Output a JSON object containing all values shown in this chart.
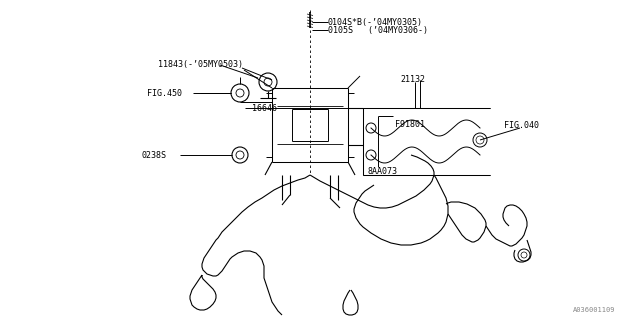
{
  "background_color": "#ffffff",
  "line_color": "#000000",
  "labels": {
    "part1": "0104S*B(-’04MY0305)",
    "part2": "0105S   (’04MY0306-)",
    "part3": "11843(-’05MY0503)",
    "part4": "FIG.450",
    "part5": "16646",
    "part6": "21132",
    "part7": "F91801",
    "part8": "FIG.040",
    "part9": "8AA073",
    "part10": "0238S"
  },
  "watermark": "A036001109",
  "fig_width": 6.4,
  "fig_height": 3.2,
  "dpi": 100
}
